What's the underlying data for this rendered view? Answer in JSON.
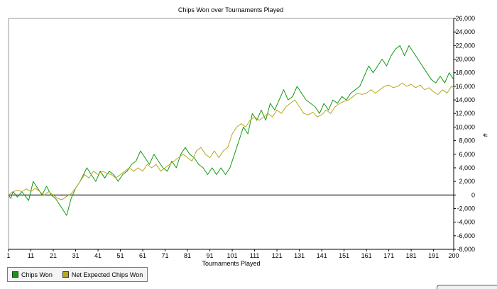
{
  "chart_data": {
    "type": "line",
    "title": "Chips Won over Tournaments Played",
    "xlabel": "Tournaments Played",
    "ylabel": "#",
    "xlim": [
      1,
      200
    ],
    "ylim": [
      -8000,
      26000
    ],
    "x_ticks": [
      1,
      11,
      21,
      31,
      41,
      51,
      61,
      71,
      81,
      91,
      101,
      111,
      121,
      131,
      141,
      151,
      161,
      171,
      181,
      191,
      200
    ],
    "y_ticks": [
      -8000,
      -6000,
      -4000,
      -2000,
      0,
      2000,
      4000,
      6000,
      8000,
      10000,
      12000,
      14000,
      16000,
      18000,
      20000,
      22000,
      24000,
      26000
    ],
    "y_tick_labels": [
      "-8,000",
      "-6,000",
      "-4,000",
      "-2,000",
      "0",
      "2,000",
      "4,000",
      "6,000",
      "8,000",
      "10,000",
      "12,000",
      "14,000",
      "16,000",
      "18,000",
      "20,000",
      "22,000",
      "24,000",
      "26,000"
    ],
    "legend_position": "bottom-left",
    "grid": false,
    "series": [
      {
        "name": "Chips Won",
        "color": "#119911",
        "points": [
          [
            1,
            0
          ],
          [
            2,
            -500
          ],
          [
            3,
            500
          ],
          [
            5,
            -300
          ],
          [
            7,
            500
          ],
          [
            9,
            -400
          ],
          [
            10,
            -800
          ],
          [
            12,
            2000
          ],
          [
            14,
            1000
          ],
          [
            16,
            0
          ],
          [
            18,
            1300
          ],
          [
            20,
            0
          ],
          [
            22,
            -500
          ],
          [
            25,
            -2000
          ],
          [
            27,
            -3000
          ],
          [
            29,
            -500
          ],
          [
            31,
            1000
          ],
          [
            33,
            2000
          ],
          [
            36,
            4000
          ],
          [
            38,
            3000
          ],
          [
            40,
            2000
          ],
          [
            42,
            3500
          ],
          [
            44,
            2500
          ],
          [
            46,
            3500
          ],
          [
            48,
            3000
          ],
          [
            50,
            2000
          ],
          [
            52,
            3000
          ],
          [
            54,
            3500
          ],
          [
            56,
            4500
          ],
          [
            58,
            5000
          ],
          [
            60,
            6500
          ],
          [
            62,
            5500
          ],
          [
            64,
            4500
          ],
          [
            66,
            6000
          ],
          [
            68,
            5000
          ],
          [
            70,
            4000
          ],
          [
            72,
            3500
          ],
          [
            74,
            5000
          ],
          [
            76,
            4000
          ],
          [
            78,
            6000
          ],
          [
            80,
            7000
          ],
          [
            82,
            6000
          ],
          [
            84,
            5500
          ],
          [
            86,
            4500
          ],
          [
            88,
            4000
          ],
          [
            90,
            3000
          ],
          [
            92,
            4000
          ],
          [
            94,
            3000
          ],
          [
            96,
            4000
          ],
          [
            98,
            3000
          ],
          [
            100,
            4000
          ],
          [
            102,
            6000
          ],
          [
            104,
            8000
          ],
          [
            106,
            10000
          ],
          [
            108,
            9000
          ],
          [
            110,
            12000
          ],
          [
            112,
            11000
          ],
          [
            114,
            12500
          ],
          [
            116,
            11000
          ],
          [
            118,
            13500
          ],
          [
            120,
            12500
          ],
          [
            122,
            14000
          ],
          [
            124,
            15500
          ],
          [
            126,
            14000
          ],
          [
            128,
            14500
          ],
          [
            130,
            16000
          ],
          [
            132,
            15000
          ],
          [
            134,
            14000
          ],
          [
            136,
            13500
          ],
          [
            138,
            13000
          ],
          [
            140,
            12000
          ],
          [
            142,
            13500
          ],
          [
            144,
            12500
          ],
          [
            146,
            14000
          ],
          [
            148,
            13500
          ],
          [
            150,
            14500
          ],
          [
            152,
            14000
          ],
          [
            154,
            15000
          ],
          [
            156,
            15500
          ],
          [
            158,
            16000
          ],
          [
            160,
            17500
          ],
          [
            162,
            19000
          ],
          [
            164,
            18000
          ],
          [
            166,
            19000
          ],
          [
            168,
            20000
          ],
          [
            170,
            19000
          ],
          [
            172,
            20500
          ],
          [
            174,
            21500
          ],
          [
            176,
            22000
          ],
          [
            178,
            20500
          ],
          [
            180,
            22000
          ],
          [
            182,
            21000
          ],
          [
            184,
            20000
          ],
          [
            186,
            19000
          ],
          [
            188,
            18000
          ],
          [
            190,
            17000
          ],
          [
            192,
            16500
          ],
          [
            194,
            17500
          ],
          [
            196,
            16500
          ],
          [
            198,
            18000
          ],
          [
            200,
            17000
          ]
        ]
      },
      {
        "name": "Net Expected Chips Won",
        "color": "#b5a91e",
        "points": [
          [
            1,
            0
          ],
          [
            3,
            500
          ],
          [
            5,
            700
          ],
          [
            7,
            500
          ],
          [
            9,
            900
          ],
          [
            11,
            500
          ],
          [
            13,
            1000
          ],
          [
            15,
            500
          ],
          [
            17,
            0
          ],
          [
            19,
            500
          ],
          [
            21,
            0
          ],
          [
            23,
            -500
          ],
          [
            25,
            -700
          ],
          [
            27,
            -200
          ],
          [
            29,
            200
          ],
          [
            31,
            1000
          ],
          [
            33,
            2000
          ],
          [
            35,
            3000
          ],
          [
            37,
            2500
          ],
          [
            39,
            3500
          ],
          [
            41,
            3000
          ],
          [
            43,
            3500
          ],
          [
            45,
            3200
          ],
          [
            47,
            3000
          ],
          [
            49,
            2500
          ],
          [
            51,
            3000
          ],
          [
            53,
            3500
          ],
          [
            55,
            4000
          ],
          [
            57,
            3500
          ],
          [
            59,
            4000
          ],
          [
            61,
            3500
          ],
          [
            63,
            4500
          ],
          [
            65,
            4000
          ],
          [
            67,
            4500
          ],
          [
            69,
            3500
          ],
          [
            71,
            4000
          ],
          [
            73,
            4500
          ],
          [
            75,
            5000
          ],
          [
            77,
            5500
          ],
          [
            79,
            6000
          ],
          [
            81,
            5500
          ],
          [
            83,
            5000
          ],
          [
            85,
            6500
          ],
          [
            87,
            7000
          ],
          [
            89,
            6000
          ],
          [
            91,
            5500
          ],
          [
            93,
            6500
          ],
          [
            95,
            5500
          ],
          [
            97,
            6500
          ],
          [
            99,
            7000
          ],
          [
            101,
            9000
          ],
          [
            103,
            10000
          ],
          [
            105,
            10500
          ],
          [
            107,
            10000
          ],
          [
            109,
            11000
          ],
          [
            111,
            11500
          ],
          [
            113,
            11000
          ],
          [
            115,
            11500
          ],
          [
            117,
            12000
          ],
          [
            119,
            11500
          ],
          [
            121,
            12500
          ],
          [
            123,
            12000
          ],
          [
            125,
            13000
          ],
          [
            127,
            13500
          ],
          [
            129,
            14000
          ],
          [
            131,
            13000
          ],
          [
            133,
            12000
          ],
          [
            135,
            11800
          ],
          [
            137,
            12200
          ],
          [
            139,
            11500
          ],
          [
            141,
            11800
          ],
          [
            143,
            12500
          ],
          [
            145,
            12000
          ],
          [
            147,
            13000
          ],
          [
            149,
            13500
          ],
          [
            151,
            13800
          ],
          [
            153,
            14000
          ],
          [
            155,
            14500
          ],
          [
            157,
            15000
          ],
          [
            159,
            14800
          ],
          [
            161,
            15000
          ],
          [
            163,
            15500
          ],
          [
            165,
            15000
          ],
          [
            167,
            15500
          ],
          [
            169,
            16000
          ],
          [
            171,
            16200
          ],
          [
            173,
            15800
          ],
          [
            175,
            16000
          ],
          [
            177,
            16500
          ],
          [
            179,
            16000
          ],
          [
            181,
            16300
          ],
          [
            183,
            15800
          ],
          [
            185,
            16200
          ],
          [
            187,
            15500
          ],
          [
            189,
            15800
          ],
          [
            191,
            15200
          ],
          [
            193,
            14800
          ],
          [
            195,
            15500
          ],
          [
            197,
            15000
          ],
          [
            199,
            16000
          ],
          [
            200,
            15800
          ]
        ]
      }
    ]
  }
}
